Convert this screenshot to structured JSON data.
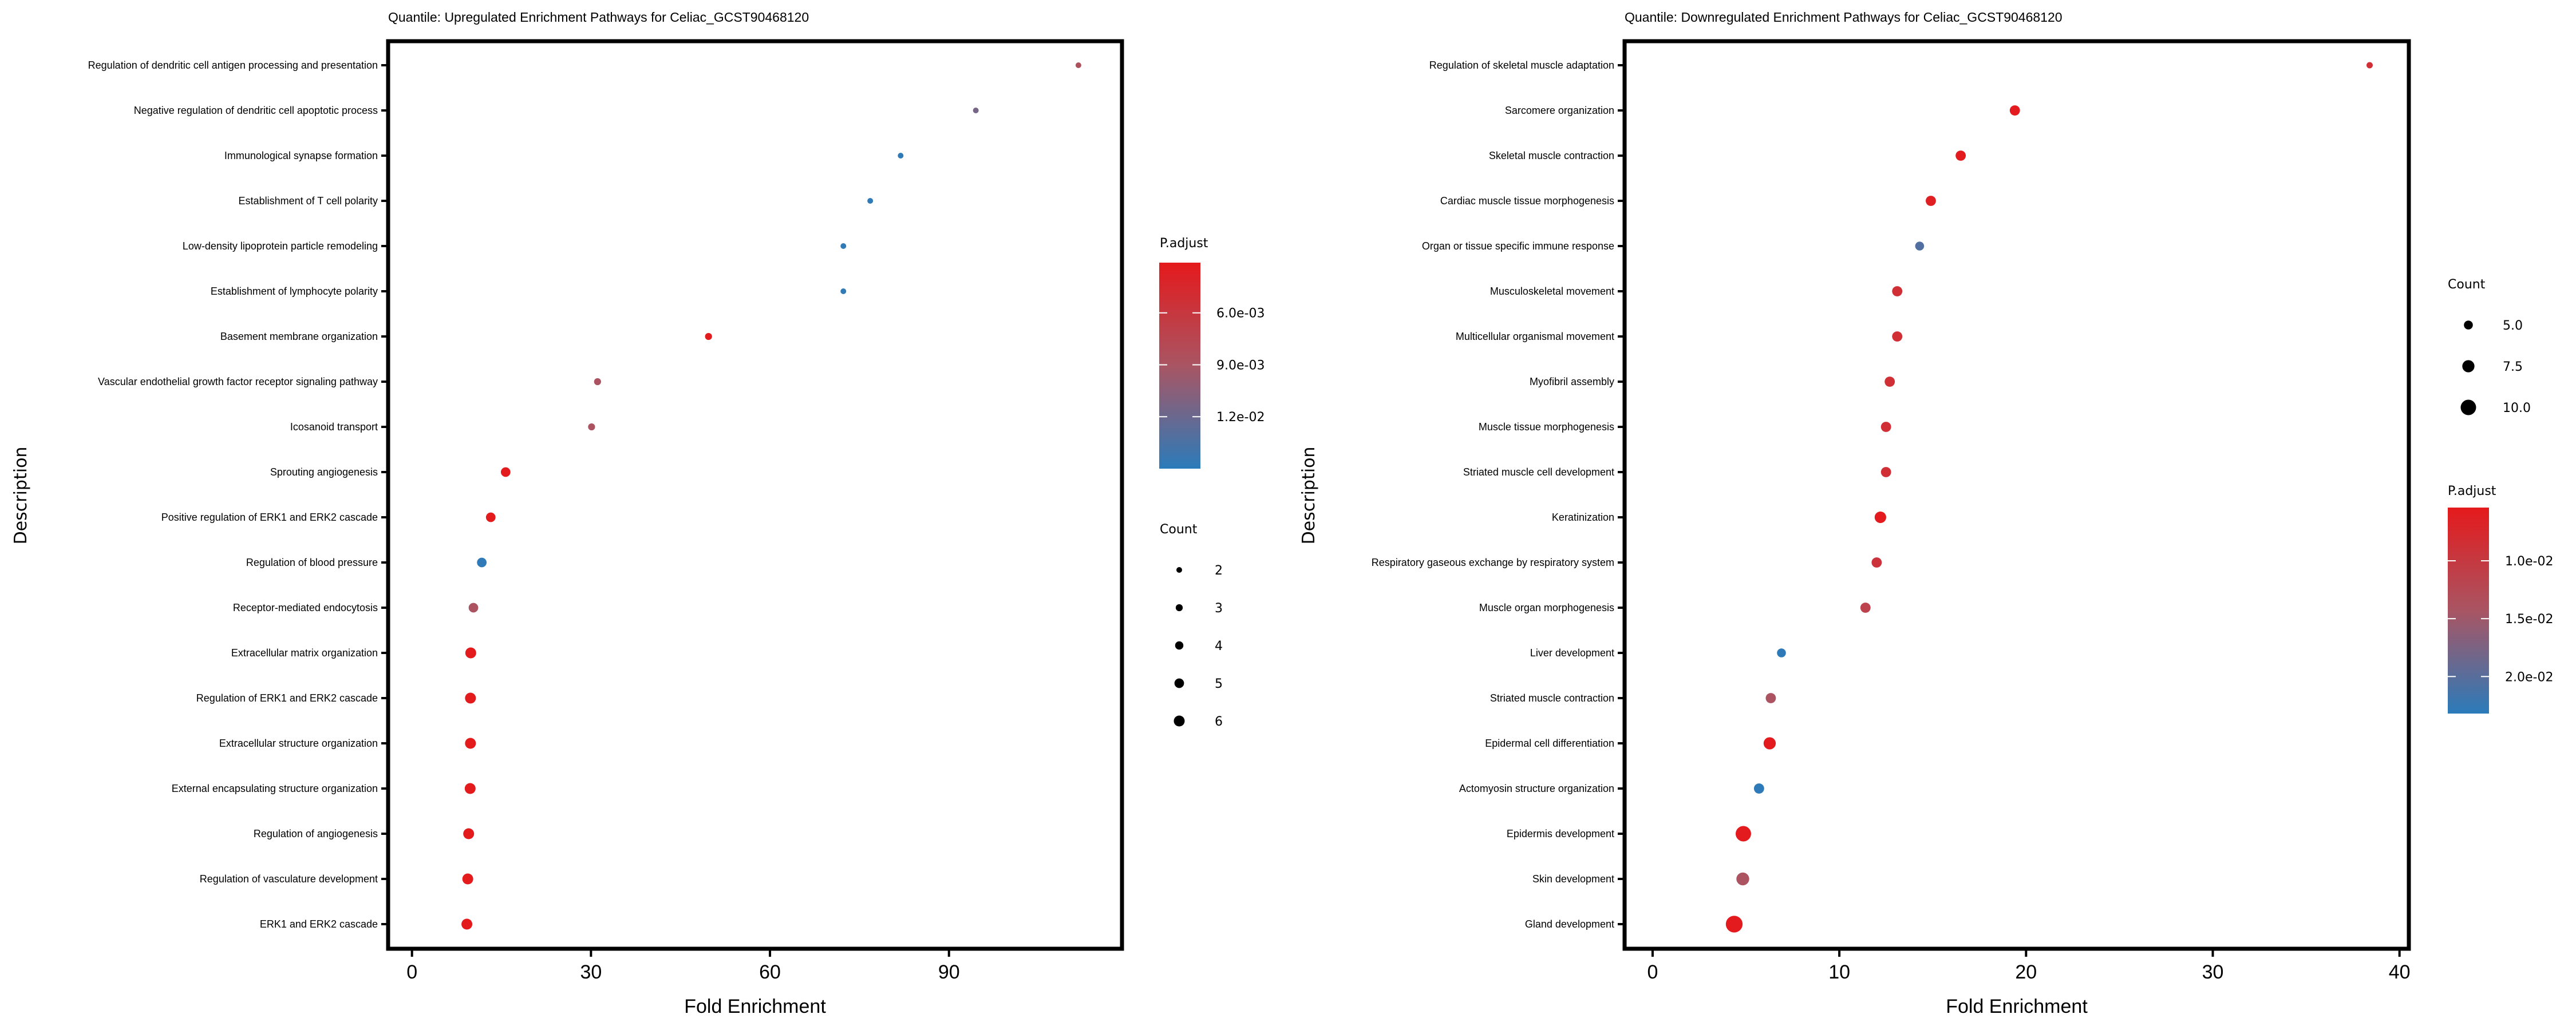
{
  "chart_data": [
    {
      "type": "scatter",
      "title": "Quantile: Upregulated Enrichment Pathways for Celiac_GCST90468120",
      "xlabel": "Fold Enrichment",
      "ylabel": "Description",
      "xlim": [
        -4,
        119
      ],
      "xticks": [
        0,
        30,
        60,
        90
      ],
      "grid": false,
      "legend_placement": "right",
      "categories": [
        "Regulation of dendritic cell antigen processing and presentation",
        "Negative regulation of dendritic cell apoptotic process",
        "Immunological synapse formation",
        "Establishment of T cell polarity",
        "Low-density lipoprotein particle remodeling",
        "Establishment of lymphocyte polarity",
        "Basement membrane organization",
        "Vascular endothelial growth factor receptor signaling pathway",
        "Icosanoid transport",
        "Sprouting angiogenesis",
        "Positive regulation of ERK1 and ERK2 cascade",
        "Regulation of blood pressure",
        "Receptor-mediated endocytosis",
        "Extracellular matrix organization",
        "Regulation of ERK1 and ERK2 cascade",
        "Extracellular structure organization",
        "External encapsulating structure organization",
        "Regulation of angiogenesis",
        "Regulation of vasculature development",
        "ERK1 and ERK2 cascade"
      ],
      "fold_enrichment": [
        111.7,
        94.5,
        81.9,
        76.8,
        72.3,
        72.3,
        49.7,
        31.1,
        30.1,
        15.7,
        13.2,
        11.7,
        10.3,
        9.85,
        9.8,
        9.8,
        9.75,
        9.5,
        9.35,
        9.2
      ],
      "count": [
        2,
        2,
        2,
        2,
        2,
        2,
        3,
        3,
        3,
        5,
        5,
        5,
        5,
        6,
        6,
        6,
        6,
        6,
        6,
        6
      ],
      "p_adjust": [
        0.0085,
        0.0115,
        0.0148,
        0.0148,
        0.0148,
        0.0148,
        0.0033,
        0.0088,
        0.0088,
        0.0032,
        0.0032,
        0.0148,
        0.0088,
        0.0032,
        0.0032,
        0.0032,
        0.0032,
        0.0032,
        0.0032,
        0.0032
      ],
      "color_legend": {
        "title": "P.adjust",
        "ticks": [
          "6.0e-03",
          "9.0e-03",
          "1.2e-02"
        ],
        "tick_values": [
          0.006,
          0.009,
          0.012
        ],
        "range": [
          0.0031,
          0.015
        ],
        "low_color": "#e41a1c",
        "high_color": "#2b7bba"
      },
      "size_legend": {
        "title": "Count",
        "labels": [
          "2",
          "3",
          "4",
          "5",
          "6"
        ],
        "values": [
          2,
          3,
          4,
          5,
          6
        ]
      }
    },
    {
      "type": "scatter",
      "title": "Quantile: Downregulated Enrichment Pathways for Celiac_GCST90468120",
      "xlabel": "Fold Enrichment",
      "ylabel": "Description",
      "xlim": [
        -1.5,
        40.5
      ],
      "xticks": [
        0,
        10,
        20,
        30,
        40
      ],
      "grid": false,
      "legend_placement": "right",
      "categories": [
        "Regulation of skeletal muscle adaptation",
        "Sarcomere organization",
        "Skeletal muscle contraction",
        "Cardiac muscle tissue morphogenesis",
        "Organ or tissue specific immune response",
        "Musculoskeletal movement",
        "Multicellular organismal movement",
        "Myofibril assembly",
        "Muscle tissue morphogenesis",
        "Striated muscle cell development",
        "Keratinization",
        "Respiratory gaseous exchange by respiratory system",
        "Muscle organ morphogenesis",
        "Liver development",
        "Striated muscle contraction",
        "Epidermal cell differentiation",
        "Actomyosin structure organization",
        "Epidermis development",
        "Skin development",
        "Gland development"
      ],
      "fold_enrichment": [
        38.4,
        19.4,
        16.5,
        14.9,
        14.3,
        13.1,
        13.1,
        12.7,
        12.5,
        12.5,
        12.2,
        12.0,
        11.4,
        6.9,
        6.33,
        6.27,
        5.7,
        4.86,
        4.83,
        4.37
      ],
      "count": [
        3,
        6,
        6,
        6,
        5,
        6,
        6,
        6,
        6,
        6,
        7,
        6,
        6,
        5,
        6,
        7.5,
        6,
        10,
        8,
        11
      ],
      "p_adjust": [
        0.0085,
        0.0056,
        0.0056,
        0.0062,
        0.0205,
        0.0085,
        0.0085,
        0.0085,
        0.0085,
        0.0085,
        0.0056,
        0.009,
        0.0115,
        0.023,
        0.014,
        0.0056,
        0.023,
        0.0056,
        0.014,
        0.0056
      ],
      "color_legend": {
        "title": "P.adjust",
        "ticks": [
          "1.0e-02",
          "1.5e-02",
          "2.0e-02"
        ],
        "tick_values": [
          0.01,
          0.015,
          0.02
        ],
        "range": [
          0.0054,
          0.0232
        ],
        "low_color": "#e41a1c",
        "high_color": "#2b7bba"
      },
      "size_legend": {
        "title": "Count",
        "labels": [
          "5.0",
          "7.5",
          "10.0"
        ],
        "values": [
          5,
          7.5,
          10
        ]
      }
    }
  ]
}
